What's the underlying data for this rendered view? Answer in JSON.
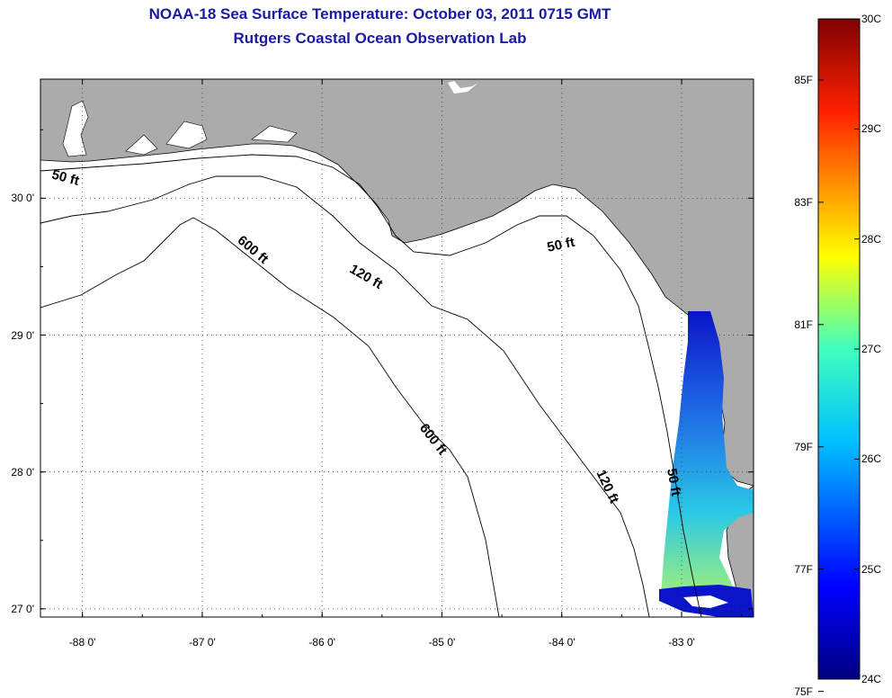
{
  "header": {
    "title": "NOAA-18 Sea Surface Temperature:  October 03, 2011 0715 GMT",
    "subtitle": "Rutgers Coastal Ocean Observation Lab"
  },
  "map": {
    "lon_range": [
      -88.35,
      -82.4
    ],
    "lat_range": [
      26.94,
      30.87
    ],
    "lon_ticks": [
      {
        "value": -88,
        "label": "-88 0'"
      },
      {
        "value": -87,
        "label": "-87 0'"
      },
      {
        "value": -86,
        "label": "-86 0'"
      },
      {
        "value": -85,
        "label": "-85 0'"
      },
      {
        "value": -84,
        "label": "-84 0'"
      },
      {
        "value": -83,
        "label": "-83 0'"
      }
    ],
    "lat_ticks": [
      {
        "value": 30,
        "label": "30 0'"
      },
      {
        "value": 29,
        "label": "29 0'"
      },
      {
        "value": 28,
        "label": "28 0'"
      },
      {
        "value": 27,
        "label": "27 0'"
      }
    ],
    "land_color": "#ababab",
    "water_color": "#ffffff",
    "grid": "dotted",
    "contour_labels": [
      {
        "text": "50 ft",
        "lon": -88.15,
        "lat": 30.12,
        "rot": 15
      },
      {
        "text": "600 ft",
        "lon": -86.6,
        "lat": 29.6,
        "rot": 40
      },
      {
        "text": "120 ft",
        "lon": -85.65,
        "lat": 29.4,
        "rot": 30
      },
      {
        "text": "50 ft",
        "lon": -84.0,
        "lat": 29.63,
        "rot": -12
      },
      {
        "text": "600 ft",
        "lon": -85.1,
        "lat": 28.22,
        "rot": 52
      },
      {
        "text": "120 ft",
        "lon": -83.65,
        "lat": 27.88,
        "rot": 65
      },
      {
        "text": "50 ft",
        "lon": -83.1,
        "lat": 27.92,
        "rot": 80
      }
    ]
  },
  "colorbar": {
    "colors": [
      "#000080",
      "#0000ff",
      "#00ffff",
      "#ffff00",
      "#ff0000",
      "#800000"
    ],
    "celsius": [
      {
        "value": 30,
        "label": "30C"
      },
      {
        "value": 29,
        "label": "29C"
      },
      {
        "value": 28,
        "label": "28C"
      },
      {
        "value": 27,
        "label": "27C"
      },
      {
        "value": 26,
        "label": "26C"
      },
      {
        "value": 25,
        "label": "25C"
      },
      {
        "value": 24,
        "label": "24C"
      }
    ],
    "fahrenheit": [
      {
        "value": 85,
        "label": "85F"
      },
      {
        "value": 83,
        "label": "83F"
      },
      {
        "value": 81,
        "label": "81F"
      },
      {
        "value": 79,
        "label": "79F"
      },
      {
        "value": 77,
        "label": "77F"
      },
      {
        "value": 75,
        "label": "75F"
      }
    ]
  }
}
